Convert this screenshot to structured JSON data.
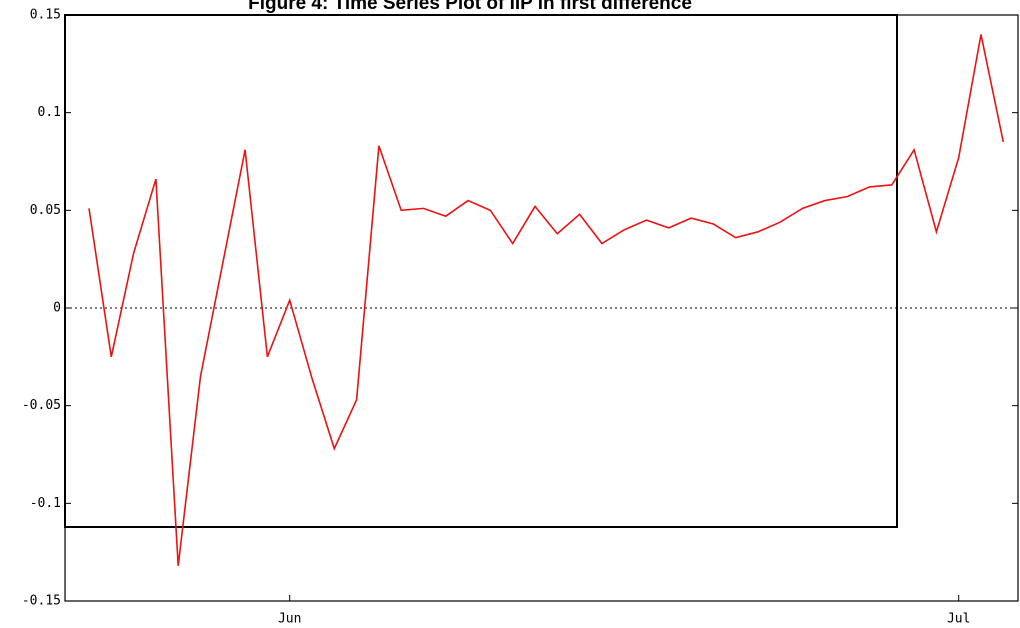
{
  "chart_data": {
    "type": "line",
    "title": "Figure 4: Time Series Plot of IIP in first difference",
    "categories": [
      null,
      null,
      null,
      null,
      null,
      null,
      null,
      null,
      null,
      "Jun",
      null,
      null,
      null,
      null,
      null,
      null,
      null,
      null,
      null,
      null,
      null,
      null,
      null,
      null,
      null,
      null,
      null,
      null,
      null,
      null,
      null,
      null,
      null,
      null,
      null,
      null,
      null,
      null,
      null,
      "Jul",
      null,
      null
    ],
    "series": [
      {
        "name": "IIP",
        "color": "#ee1111",
        "values": [
          0.051,
          -0.025,
          0.028,
          0.066,
          -0.132,
          -0.035,
          0.023,
          0.081,
          -0.025,
          0.004,
          -0.036,
          -0.072,
          -0.047,
          0.083,
          0.05,
          0.051,
          0.047,
          0.055,
          0.05,
          0.033,
          0.052,
          0.038,
          0.048,
          0.033,
          0.04,
          0.045,
          0.041,
          0.046,
          0.043,
          0.036,
          0.039,
          0.044,
          0.051,
          0.055,
          0.057,
          0.062,
          0.063,
          0.081,
          0.039,
          0.077,
          0.14,
          0.085
        ]
      }
    ],
    "ylim": [
      -0.15,
      0.15
    ],
    "yticks": [
      -0.15,
      -0.1,
      -0.05,
      0,
      0.05,
      0.1,
      0.15
    ],
    "zero_line": true,
    "legend": false
  }
}
